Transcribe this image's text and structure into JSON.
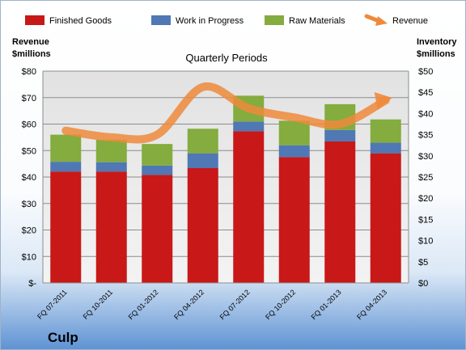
{
  "chart_data": {
    "type": "bar",
    "title": "Quarterly Periods",
    "company": "Culp",
    "categories": [
      "FQ 07-2011",
      "FQ 10-2011",
      "FQ 01-2012",
      "FQ 04-2012",
      "FQ 07-2012",
      "FQ 10-2012",
      "FQ 01-2013",
      "FQ 04-2013"
    ],
    "stacked": true,
    "series": [
      {
        "name": "Finished Goods",
        "color": "#c81818",
        "axis": "right",
        "values": [
          26.3,
          26.3,
          25.5,
          27.1,
          35.8,
          29.7,
          33.4,
          30.6
        ]
      },
      {
        "name": "Work in Progress",
        "color": "#4f78b4",
        "axis": "right",
        "values": [
          2.3,
          2.2,
          2.2,
          3.5,
          2.3,
          2.8,
          2.7,
          2.5
        ]
      },
      {
        "name": "Raw Materials",
        "color": "#84ac3e",
        "axis": "right",
        "values": [
          6.4,
          5.3,
          5.1,
          5.8,
          6.1,
          5.8,
          6.1,
          5.5
        ]
      }
    ],
    "line": {
      "name": "Revenue",
      "color": "#ef8a3c",
      "axis": "left",
      "values": [
        57.5,
        55.0,
        56.0,
        74.0,
        66.0,
        62.5,
        60.0,
        69.0
      ]
    },
    "left_axis": {
      "label_line1": "Revenue",
      "label_line2": "$millions",
      "ticks": [
        "$-",
        "$10",
        "$20",
        "$30",
        "$40",
        "$50",
        "$60",
        "$70",
        "$80"
      ],
      "min": 0,
      "max": 80
    },
    "right_axis": {
      "label_line1": "Inventory",
      "label_line2": "$millions",
      "ticks": [
        "$0",
        "$5",
        "$10",
        "$15",
        "$20",
        "$25",
        "$30",
        "$35",
        "$40",
        "$45",
        "$50"
      ],
      "min": 0,
      "max": 50
    },
    "legend_position": "top",
    "grid": true
  }
}
